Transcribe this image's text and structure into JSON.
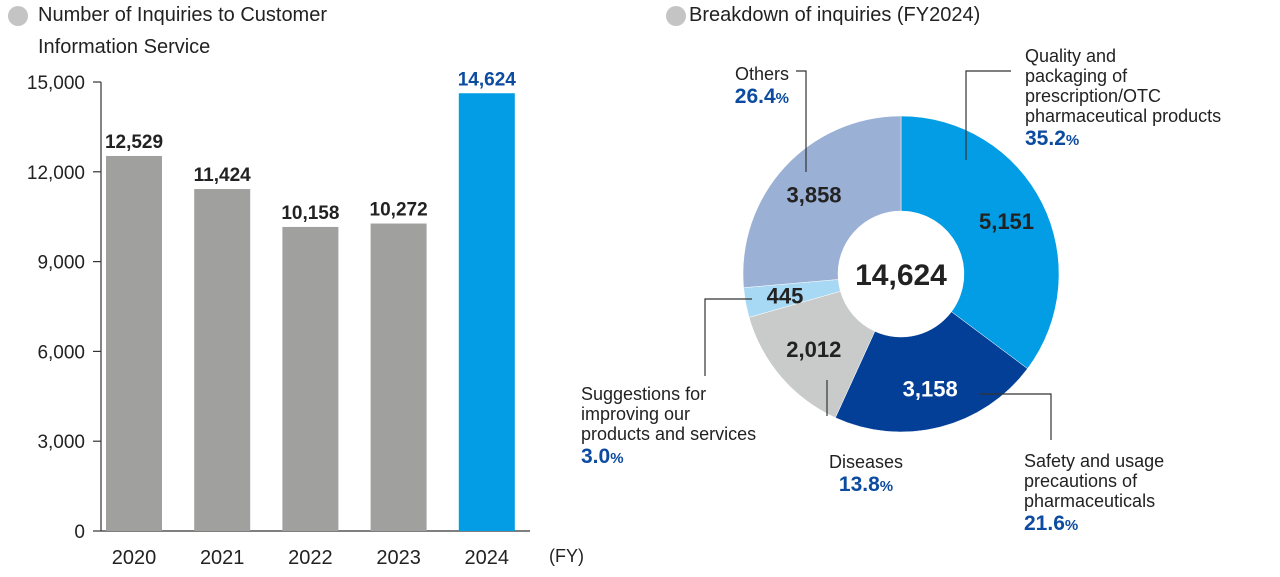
{
  "left_panel": {
    "title_line1": "Number of Inquiries to Customer",
    "title_line2": "Information Service"
  },
  "right_panel": {
    "title": "Breakdown of inquiries (FY2024)"
  },
  "colors": {
    "bar_default": "#a0a19f",
    "bar_highlight": "#029de4",
    "highlight_text": "#0c4ba0",
    "legend_dot": "#c4c4c4"
  },
  "chart_data": [
    {
      "type": "bar",
      "categories": [
        "2020",
        "2021",
        "2022",
        "2023",
        "2024"
      ],
      "values": [
        12529,
        11424,
        10158,
        10272,
        14624
      ],
      "value_labels": [
        "12,529",
        "11,424",
        "10,158",
        "10,272",
        "14,624"
      ],
      "highlight_index": 4,
      "ylim": [
        0,
        15000
      ],
      "yticks": [
        0,
        3000,
        6000,
        9000,
        12000,
        15000
      ],
      "ytick_labels": [
        "0",
        "3,000",
        "6,000",
        "9,000",
        "12,000",
        "15,000"
      ],
      "xlabel": "(FY)",
      "grid": false
    },
    {
      "type": "pie",
      "center_label": "14,624",
      "slices": [
        {
          "name": "Quality and packaging of prescription/OTC pharmaceutical products",
          "label_lines": [
            "Quality and",
            "packaging of",
            "prescription/OTC",
            "pharmaceutical products"
          ],
          "value": 5151,
          "value_label": "5,151",
          "percent": "35.2",
          "color": "#029de4",
          "value_color": "#222222"
        },
        {
          "name": "Safety and usage precautions of pharmaceuticals",
          "label_lines": [
            "Safety and usage",
            "precautions of",
            "pharmaceuticals"
          ],
          "value": 3158,
          "value_label": "3,158",
          "percent": "21.6",
          "color": "#033f97",
          "value_color": "#ffffff"
        },
        {
          "name": "Diseases",
          "label_lines": [
            "Diseases"
          ],
          "value": 2012,
          "value_label": "2,012",
          "percent": "13.8",
          "color": "#c9caca",
          "value_color": "#222222"
        },
        {
          "name": "Suggestions for improving our products and services",
          "label_lines": [
            "Suggestions for",
            "improving our",
            "products and services"
          ],
          "value": 445,
          "value_label": "445",
          "percent": "3.0",
          "color": "#a7d9f5",
          "value_color": "#222222"
        },
        {
          "name": "Others",
          "label_lines": [
            "Others"
          ],
          "value": 3858,
          "value_label": "3,858",
          "percent": "26.4",
          "color": "#9bb0d5",
          "value_color": "#222222"
        }
      ],
      "percent_unit": "%"
    }
  ]
}
